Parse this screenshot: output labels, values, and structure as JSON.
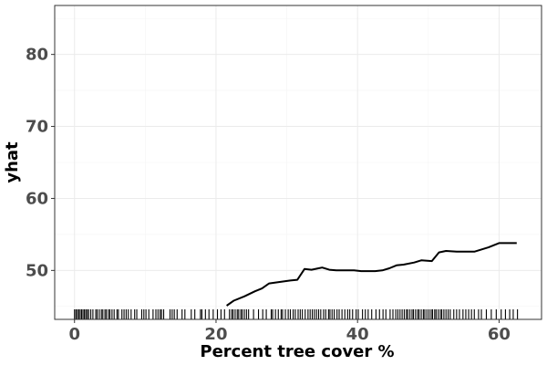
{
  "chart_data": {
    "type": "line",
    "xlabel": "Percent tree cover %",
    "ylabel": "yhat",
    "xlim": [
      -2.8,
      66.0
    ],
    "ylim": [
      43.2,
      86.8
    ],
    "x_ticks": [
      0,
      20,
      40,
      60
    ],
    "y_ticks": [
      50,
      60,
      70,
      80
    ],
    "grid": true,
    "line_color": "#000000",
    "series": [
      {
        "x": [
          21.5,
          22.5,
          24.0,
          25.5,
          26.5,
          27.5,
          29.0,
          30.5,
          31.5,
          32.5,
          33.5,
          34.5,
          35.0,
          36.0,
          37.0,
          38.0,
          39.5,
          40.5,
          42.5,
          43.5,
          44.5,
          45.5,
          46.5,
          48.0,
          49.0,
          50.5,
          51.5,
          52.5,
          54.0,
          56.5,
          58.5,
          60.0,
          61.5,
          62.5
        ],
        "y": [
          45.1,
          45.8,
          46.4,
          47.1,
          47.5,
          48.2,
          48.4,
          48.6,
          48.7,
          50.2,
          50.1,
          50.3,
          50.4,
          50.1,
          50.0,
          50.0,
          50.0,
          49.9,
          49.9,
          50.0,
          50.3,
          50.7,
          50.8,
          51.1,
          51.4,
          51.3,
          52.5,
          52.7,
          52.6,
          52.6,
          53.2,
          53.8,
          53.8,
          53.8
        ]
      }
    ],
    "rug_x": [
      0.0,
      0.2,
      0.4,
      0.6,
      0.8,
      1.0,
      1.2,
      1.4,
      1.6,
      1.8,
      2.0,
      2.3,
      2.6,
      3.0,
      3.2,
      3.5,
      3.8,
      4.0,
      4.3,
      4.5,
      4.8,
      5.0,
      5.3,
      5.6,
      6.0,
      6.2,
      6.7,
      7.0,
      7.3,
      7.6,
      8.0,
      8.5,
      8.8,
      9.5,
      9.8,
      10.1,
      10.5,
      11.1,
      11.5,
      11.8,
      12.1,
      12.3,
      12.6,
      13.5,
      13.8,
      14.1,
      14.5,
      15.2,
      15.6,
      16.5,
      17.0,
      17.8,
      18.0,
      18.5,
      19.0,
      19.6,
      20.2,
      20.7,
      21.2,
      21.9,
      22.2,
      22.4,
      22.7,
      23.0,
      23.2,
      23.5,
      23.7,
      24.0,
      24.3,
      24.6,
      25.3,
      26.0,
      26.6,
      27.1,
      27.8,
      28.0,
      28.4,
      28.8,
      29.2,
      29.4,
      29.8,
      30.2,
      30.5,
      30.9,
      31.2,
      31.6,
      31.9,
      32.2,
      32.6,
      33.0,
      33.3,
      33.6,
      33.9,
      34.2,
      34.5,
      34.8,
      35.2,
      35.5,
      35.9,
      36.1,
      36.4,
      36.7,
      37.1,
      37.4,
      37.8,
      38.2,
      38.6,
      38.9,
      39.3,
      39.8,
      40.1,
      40.7,
      41.1,
      41.5,
      42.0,
      42.6,
      43.1,
      43.6,
      44.0,
      44.6,
      45.0,
      45.4,
      45.7,
      46.0,
      46.3,
      46.6,
      46.9,
      47.1,
      47.4,
      47.7,
      47.9,
      48.2,
      48.5,
      48.7,
      49.0,
      49.3,
      49.5,
      49.8,
      50.1,
      50.4,
      50.6,
      50.9,
      51.1,
      51.4,
      51.7,
      51.9,
      52.2,
      52.5,
      52.8,
      53.1,
      53.6,
      54.0,
      54.4,
      54.9,
      55.3,
      55.7,
      56.1,
      56.5,
      57.1,
      57.5,
      58.2,
      58.9,
      59.6,
      60.3,
      60.9,
      61.5,
      62.0,
      62.6
    ]
  }
}
